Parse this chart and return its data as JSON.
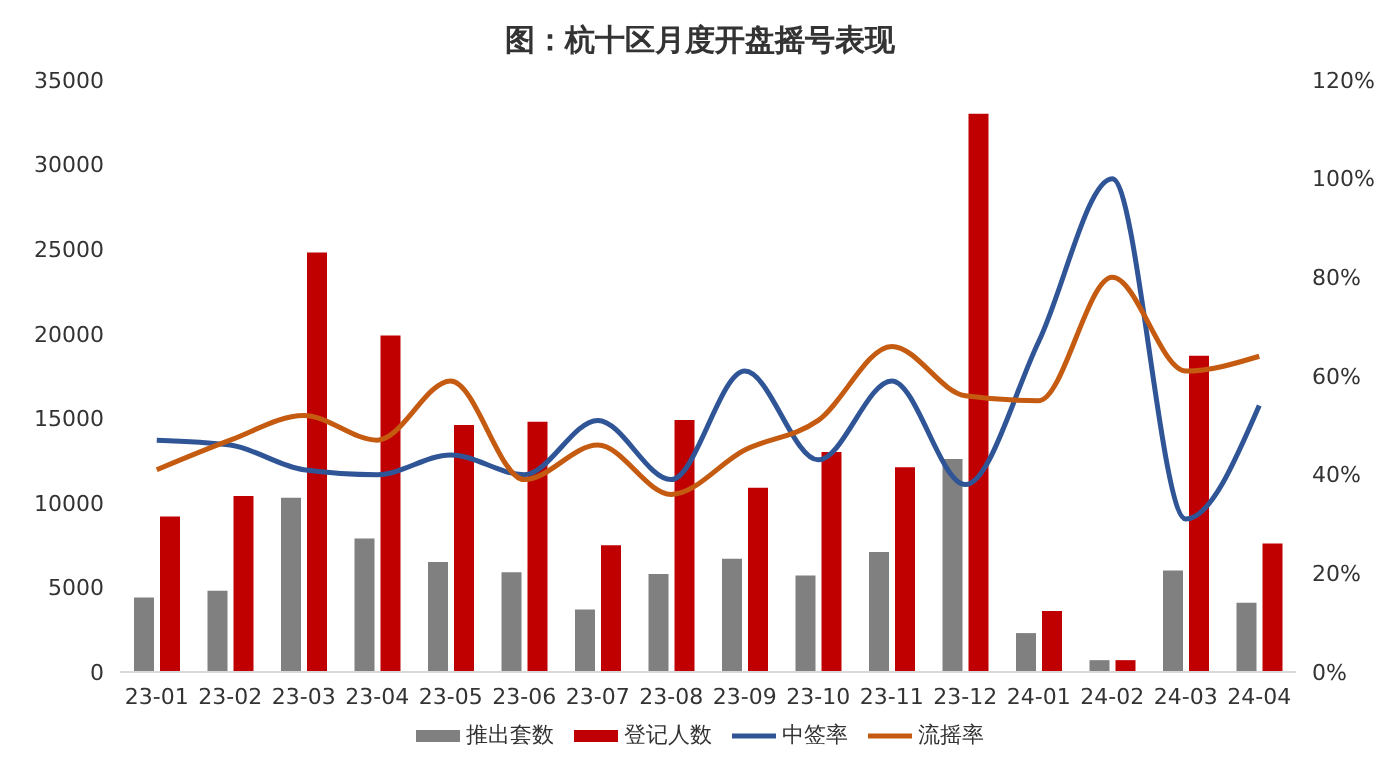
{
  "chart_data": {
    "type": "bar",
    "title": "图：杭十区月度开盘摇号表现",
    "categories": [
      "23-01",
      "23-02",
      "23-03",
      "23-04",
      "23-05",
      "23-06",
      "23-07",
      "23-08",
      "23-09",
      "23-10",
      "23-11",
      "23-12",
      "24-01",
      "24-02",
      "24-03",
      "24-04"
    ],
    "series": [
      {
        "name": "推出套数",
        "color": "#808080",
        "values": [
          4400,
          4800,
          10300,
          7900,
          6500,
          5900,
          3700,
          5800,
          6700,
          5700,
          7100,
          12600,
          2300,
          700,
          6000,
          4100
        ]
      },
      {
        "name": "登记人数",
        "color": "#c00000",
        "values": [
          9200,
          10400,
          24800,
          19900,
          14600,
          14800,
          7500,
          14900,
          10900,
          13000,
          12100,
          33000,
          3600,
          700,
          18700,
          7600
        ]
      },
      {
        "name": "中签率",
        "type": "line",
        "axis": "y2",
        "color": "#2f5597",
        "values": [
          47,
          46,
          41,
          40,
          44,
          40,
          51,
          39,
          61,
          43,
          59,
          38,
          67,
          100,
          31,
          54
        ]
      },
      {
        "name": "流摇率",
        "type": "line",
        "axis": "y2",
        "color": "#c55a11",
        "values": [
          41,
          47,
          52,
          47,
          59,
          39,
          46,
          36,
          45,
          51,
          66,
          56,
          55,
          80,
          61,
          64
        ]
      }
    ],
    "ylim": [
      0,
      35000
    ],
    "yticks": [
      0,
      5000,
      10000,
      15000,
      20000,
      25000,
      30000,
      35000
    ],
    "y2lim": [
      0,
      120
    ],
    "y2ticks": [
      {
        "value": 0,
        "label": "0%"
      },
      {
        "value": 20,
        "label": "20%"
      },
      {
        "value": 40,
        "label": "40%"
      },
      {
        "value": 60,
        "label": "60%"
      },
      {
        "value": 80,
        "label": "80%"
      },
      {
        "value": 100,
        "label": "100%"
      },
      {
        "value": 120,
        "label": "120%"
      }
    ],
    "grid": false,
    "legend": "bottom",
    "marker": "none",
    "line_style": "solid"
  }
}
